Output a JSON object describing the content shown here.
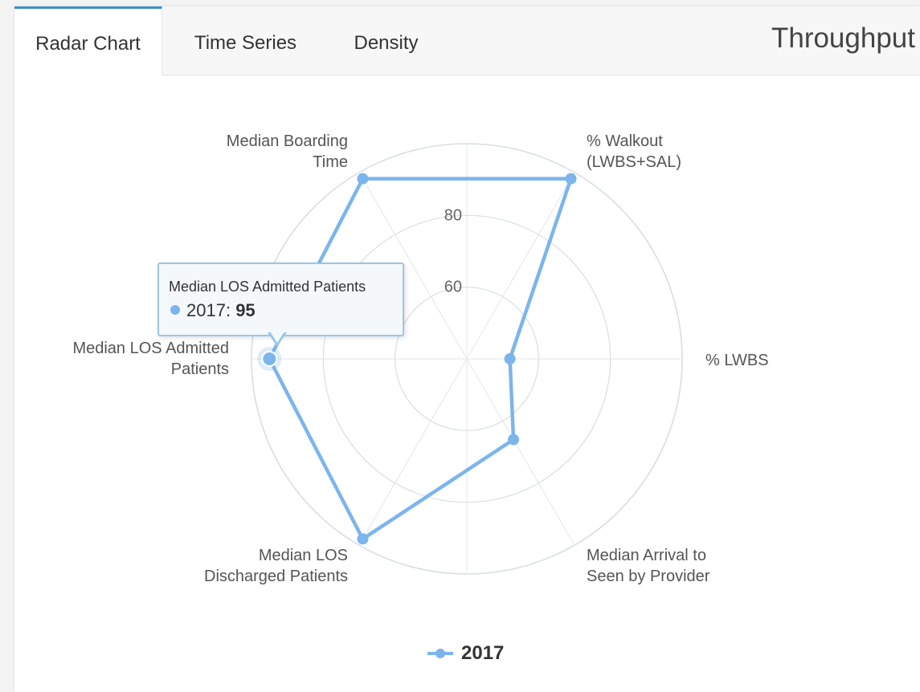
{
  "tabs": [
    {
      "label": "Radar Chart",
      "active": true
    },
    {
      "label": "Time Series",
      "active": false
    },
    {
      "label": "Density",
      "active": false
    }
  ],
  "page_title": "Throughput",
  "colors": {
    "series": "#7cb5ec",
    "grid": "#d8dde6",
    "accent": "#3d8ec9"
  },
  "chart_data": {
    "type": "radar",
    "categories": [
      "% LWBS",
      "% Walkout\n(LWBS+SAL)",
      "Median Boarding\nTime",
      "Median LOS Admitted\nPatients",
      "Median LOS\nDischarged Patients",
      "Median Arrival to\nSeen by Provider"
    ],
    "series": [
      {
        "name": "2017",
        "values": [
          52,
          98,
          98,
          95,
          98,
          66
        ]
      }
    ],
    "radial_ticks": [
      "60",
      "80"
    ],
    "legend_position": "bottom"
  },
  "tooltip": {
    "title": "Median LOS Admitted Patients",
    "series": "2017",
    "value": "95"
  }
}
